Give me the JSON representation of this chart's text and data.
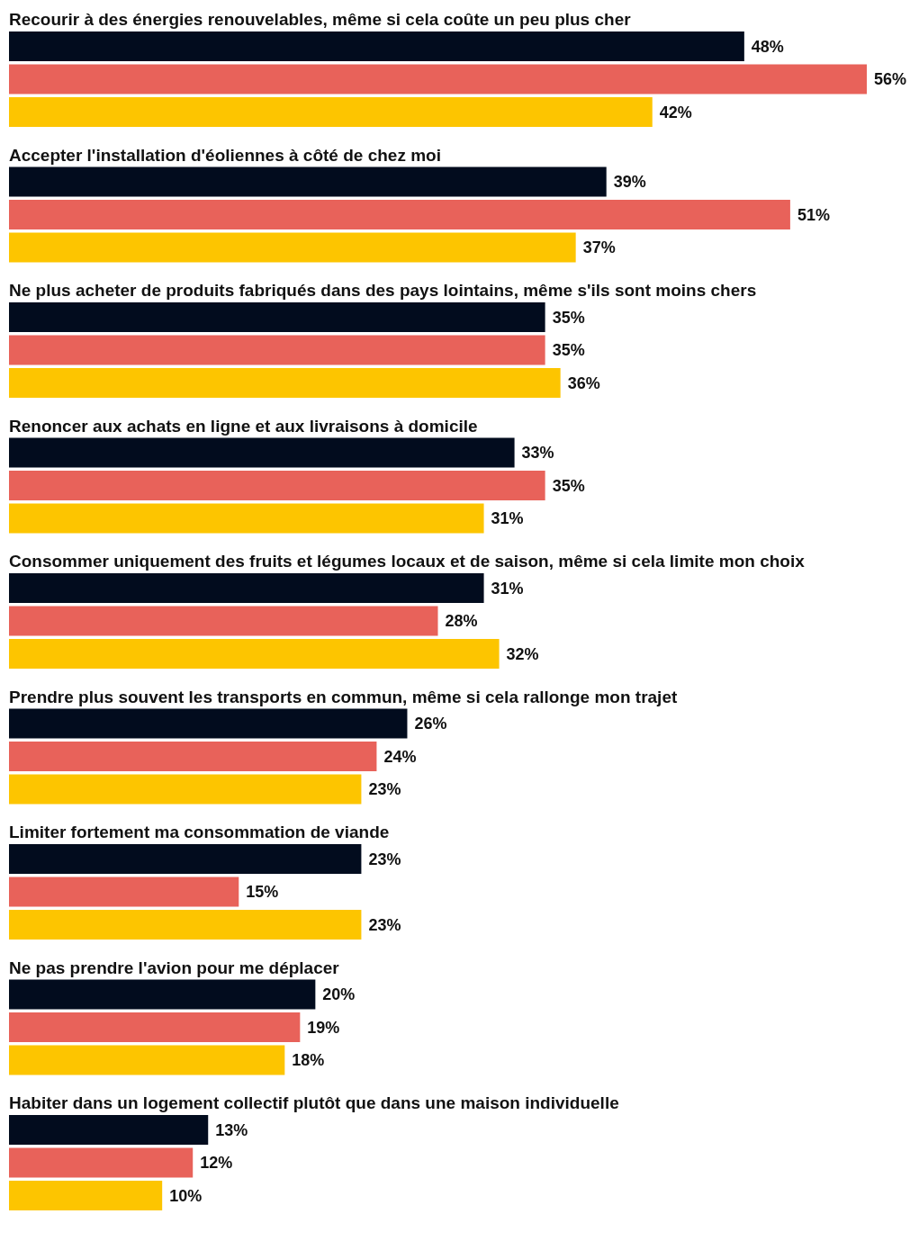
{
  "chart_data": {
    "type": "bar",
    "orientation": "horizontal",
    "categories": [
      "Recourir à des énergies renouvelables, même si cela coûte un peu plus cher",
      "Accepter l'installation d'éoliennes à côté de chez moi",
      "Ne plus acheter de produits fabriqués dans des pays lointains, même s'ils sont moins chers",
      "Renoncer aux achats en ligne et aux livraisons à domicile",
      "Consommer uniquement des fruits et légumes locaux et de saison, même si cela limite mon choix",
      "Prendre plus souvent les transports en commun, même si cela rallonge mon trajet",
      "Limiter fortement ma consommation de viande",
      "Ne pas prendre l'avion pour me déplacer",
      "Habiter dans un logement collectif plutôt que dans une maison individuelle"
    ],
    "series": [
      {
        "color": "#020c1e",
        "values": [
          48,
          39,
          35,
          33,
          31,
          26,
          23,
          20,
          13
        ],
        "value_labels": [
          "48%",
          "39%",
          "35%",
          "33%",
          "31%",
          "26%",
          "23%",
          "20%",
          "13%"
        ]
      },
      {
        "color": "#e8625a",
        "values": [
          56,
          51,
          35,
          35,
          28,
          24,
          15,
          19,
          12
        ],
        "value_labels": [
          "56%",
          "51%",
          "35%",
          "35%",
          "28%",
          "24%",
          "15%",
          "19%",
          "12%"
        ]
      },
      {
        "color": "#fdc500",
        "values": [
          42,
          37,
          36,
          31,
          32,
          23,
          23,
          18,
          10
        ],
        "value_labels": [
          "42%",
          "37%",
          "36%",
          "31%",
          "32%",
          "23%",
          "23%",
          "18%",
          "10%"
        ]
      }
    ]
  }
}
